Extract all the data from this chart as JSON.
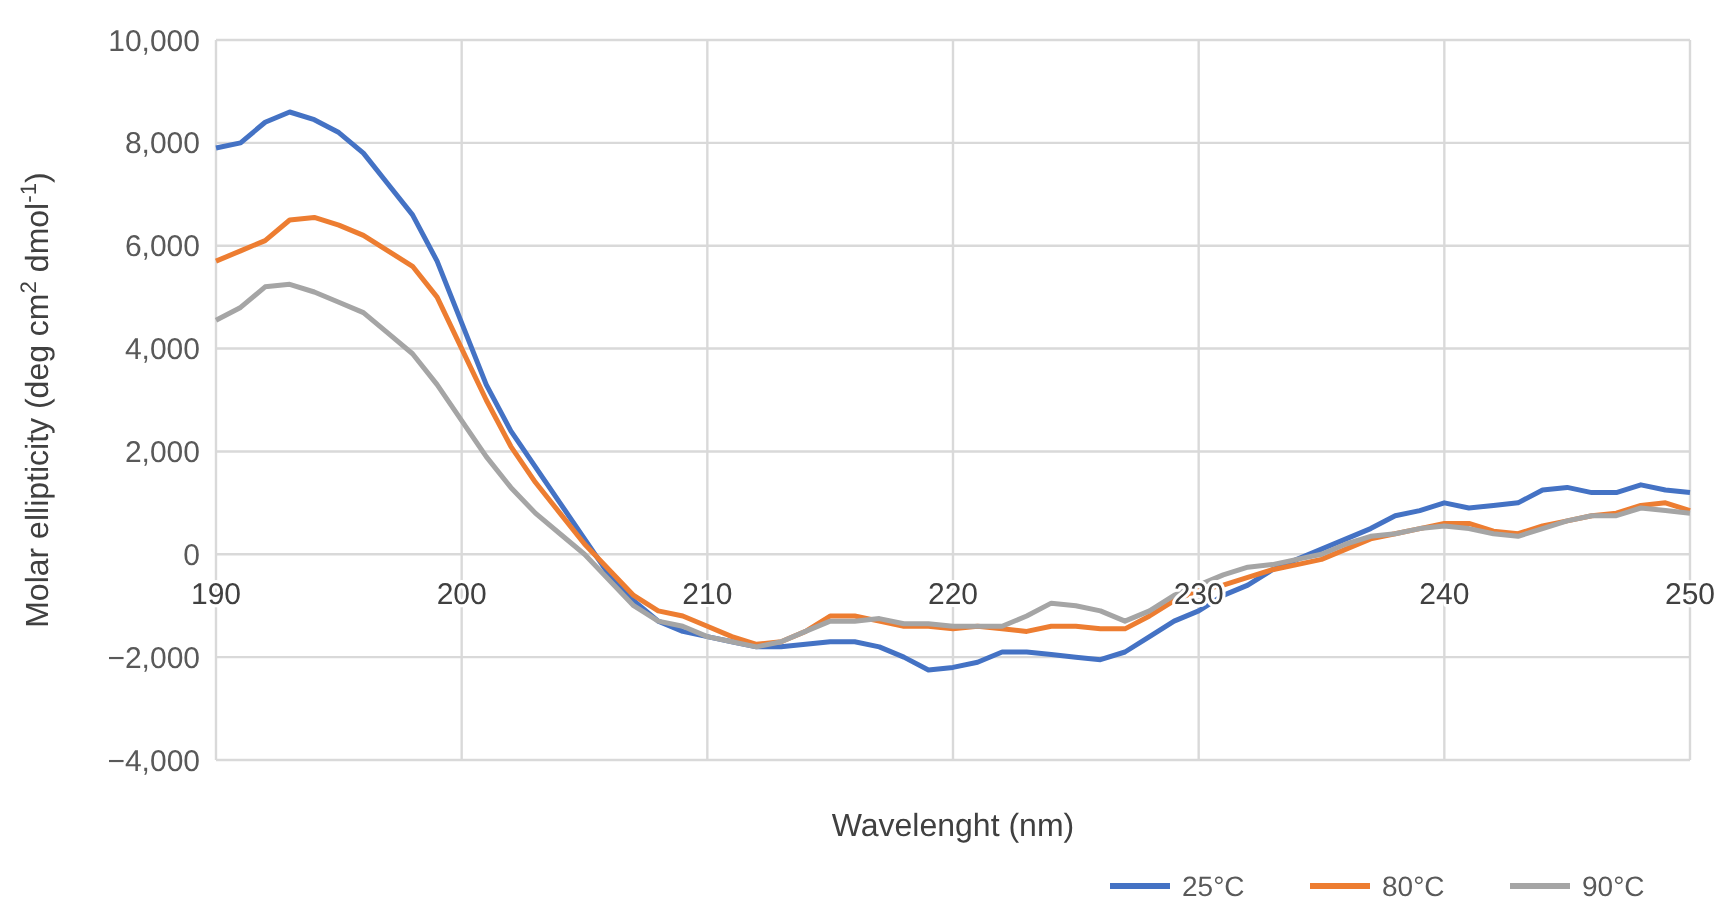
{
  "chart_data": {
    "type": "line",
    "xlabel": "Wavelenght (nm)",
    "ylabel": "Molar ellipticity (deg cm$^{2}$ dmol$^{-1}$)",
    "x": [
      190,
      191,
      192,
      193,
      194,
      195,
      196,
      197,
      198,
      199,
      200,
      201,
      202,
      203,
      204,
      205,
      206,
      207,
      208,
      209,
      210,
      211,
      212,
      213,
      214,
      215,
      216,
      217,
      218,
      219,
      220,
      221,
      222,
      223,
      224,
      225,
      226,
      227,
      228,
      229,
      230,
      231,
      232,
      233,
      234,
      235,
      236,
      237,
      238,
      239,
      240,
      241,
      242,
      243,
      244,
      245,
      246,
      247,
      248,
      249,
      250
    ],
    "series": [
      {
        "name": "25°C",
        "color": "#4472c4",
        "values": [
          7900,
          8000,
          8400,
          8600,
          8450,
          8200,
          7800,
          7200,
          6600,
          5700,
          4500,
          3300,
          2400,
          1700,
          1000,
          300,
          -400,
          -900,
          -1300,
          -1500,
          -1600,
          -1700,
          -1800,
          -1800,
          -1750,
          -1700,
          -1700,
          -1800,
          -2000,
          -2250,
          -2200,
          -2100,
          -1900,
          -1900,
          -1950,
          -2000,
          -2050,
          -1900,
          -1600,
          -1300,
          -1100,
          -800,
          -600,
          -300,
          -100,
          100,
          300,
          500,
          750,
          850,
          1000,
          900,
          950,
          1000,
          1250,
          1300,
          1200,
          1200,
          1350,
          1250,
          1200
        ]
      },
      {
        "name": "80°C",
        "color": "#ed7d31",
        "values": [
          5700,
          5900,
          6100,
          6500,
          6550,
          6400,
          6200,
          5900,
          5600,
          5000,
          4000,
          3000,
          2100,
          1400,
          800,
          200,
          -300,
          -800,
          -1100,
          -1200,
          -1400,
          -1600,
          -1750,
          -1700,
          -1500,
          -1200,
          -1200,
          -1300,
          -1400,
          -1400,
          -1450,
          -1400,
          -1450,
          -1500,
          -1400,
          -1400,
          -1450,
          -1450,
          -1200,
          -900,
          -700,
          -600,
          -450,
          -300,
          -200,
          -100,
          100,
          300,
          400,
          500,
          600,
          600,
          450,
          400,
          550,
          650,
          750,
          800,
          950,
          1000,
          850
        ]
      },
      {
        "name": "90°C",
        "color": "#a5a5a5",
        "values": [
          4550,
          4800,
          5200,
          5250,
          5100,
          4900,
          4700,
          4300,
          3900,
          3300,
          2600,
          1900,
          1300,
          800,
          400,
          0,
          -500,
          -1000,
          -1300,
          -1400,
          -1600,
          -1700,
          -1800,
          -1700,
          -1500,
          -1300,
          -1300,
          -1250,
          -1350,
          -1350,
          -1400,
          -1400,
          -1400,
          -1200,
          -950,
          -1000,
          -1100,
          -1300,
          -1100,
          -800,
          -600,
          -400,
          -250,
          -200,
          -100,
          0,
          200,
          350,
          400,
          500,
          550,
          500,
          400,
          350,
          500,
          650,
          750,
          750,
          900,
          850,
          800
        ]
      }
    ],
    "xlim": [
      190,
      250
    ],
    "xticks": [
      190,
      200,
      210,
      220,
      230,
      240,
      250
    ],
    "ylim": [
      -4000,
      10000
    ],
    "yticks": [
      {
        "value": -4000,
        "label": "−4,000"
      },
      {
        "value": -2000,
        "label": "−2,000"
      },
      0,
      {
        "value": 2000,
        "label": "2,000"
      },
      {
        "value": 4000,
        "label": "4,000"
      },
      {
        "value": 6000,
        "label": "6,000"
      },
      {
        "value": 8000,
        "label": "8,000"
      },
      {
        "value": 10000,
        "label": "10,000"
      }
    ],
    "grid": true,
    "legend": "bottom right",
    "marker": "none",
    "line_style": "solid"
  }
}
